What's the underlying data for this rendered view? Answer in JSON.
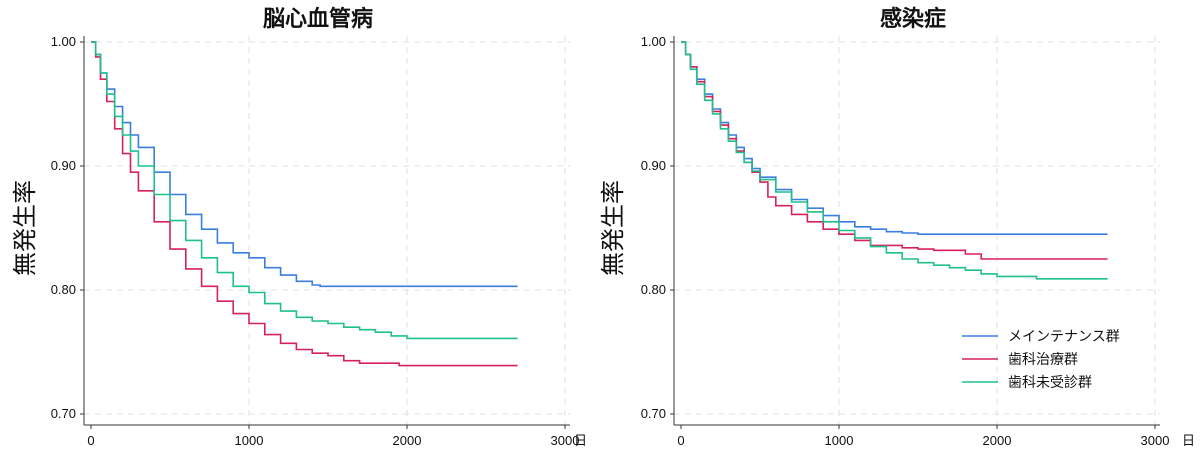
{
  "chart_data": [
    {
      "type": "line",
      "subtype": "kaplan-meier step",
      "title": "脳心血管病",
      "xlabel": "",
      "x_unit": "日",
      "ylabel": "無発生率",
      "xlim": [
        0,
        3000
      ],
      "ylim": [
        0.69,
        1.005
      ],
      "x_ticks": [
        0,
        1000,
        2000,
        3000
      ],
      "y_ticks": [
        1.0,
        0.9,
        0.8,
        0.7
      ],
      "y_tick_labels": [
        "1.00",
        "0.90",
        "0.80",
        "0.70"
      ],
      "grid": true,
      "series": [
        {
          "name": "メインテナンス群",
          "color": "#3a7fe0",
          "x": [
            0,
            30,
            60,
            100,
            150,
            200,
            250,
            300,
            400,
            500,
            600,
            700,
            800,
            900,
            1000,
            1100,
            1200,
            1300,
            1400,
            1450,
            2000,
            2700
          ],
          "y": [
            1.0,
            0.99,
            0.975,
            0.962,
            0.948,
            0.935,
            0.925,
            0.915,
            0.895,
            0.877,
            0.861,
            0.849,
            0.838,
            0.83,
            0.826,
            0.818,
            0.812,
            0.807,
            0.804,
            0.803,
            0.803,
            0.803
          ]
        },
        {
          "name": "歯科治療群",
          "color": "#d6225a",
          "x": [
            0,
            30,
            60,
            100,
            150,
            200,
            250,
            300,
            400,
            500,
            600,
            700,
            800,
            900,
            1000,
            1100,
            1200,
            1300,
            1400,
            1500,
            1600,
            1700,
            1800,
            1950,
            2700
          ],
          "y": [
            1.0,
            0.988,
            0.97,
            0.952,
            0.93,
            0.91,
            0.895,
            0.88,
            0.855,
            0.833,
            0.817,
            0.803,
            0.791,
            0.781,
            0.773,
            0.764,
            0.757,
            0.752,
            0.749,
            0.747,
            0.743,
            0.741,
            0.741,
            0.739,
            0.739
          ]
        },
        {
          "name": "歯科未受診群",
          "color": "#1fbf8f",
          "x": [
            0,
            30,
            60,
            100,
            150,
            200,
            250,
            300,
            400,
            500,
            600,
            700,
            800,
            900,
            1000,
            1100,
            1200,
            1300,
            1400,
            1500,
            1600,
            1700,
            1800,
            1900,
            2000,
            2700
          ],
          "y": [
            1.0,
            0.99,
            0.975,
            0.958,
            0.94,
            0.925,
            0.912,
            0.9,
            0.877,
            0.856,
            0.84,
            0.826,
            0.814,
            0.803,
            0.798,
            0.789,
            0.783,
            0.778,
            0.775,
            0.773,
            0.77,
            0.768,
            0.766,
            0.763,
            0.761,
            0.761
          ]
        }
      ]
    },
    {
      "type": "line",
      "subtype": "kaplan-meier step",
      "title": "感染症",
      "xlabel": "",
      "x_unit": "日",
      "ylabel": "無発生率",
      "xlim": [
        0,
        3000
      ],
      "ylim": [
        0.69,
        1.005
      ],
      "x_ticks": [
        0,
        1000,
        2000,
        3000
      ],
      "y_ticks": [
        1.0,
        0.9,
        0.8,
        0.7
      ],
      "y_tick_labels": [
        "1.00",
        "0.90",
        "0.80",
        "0.70"
      ],
      "grid": true,
      "legend_position": "bottom-right",
      "series": [
        {
          "name": "メインテナンス群",
          "color": "#3a7fe0",
          "x": [
            0,
            30,
            60,
            100,
            150,
            200,
            250,
            300,
            350,
            400,
            450,
            500,
            600,
            700,
            800,
            900,
            1000,
            1100,
            1200,
            1300,
            1400,
            1500,
            2000,
            2700
          ],
          "y": [
            1.0,
            0.99,
            0.98,
            0.97,
            0.958,
            0.946,
            0.935,
            0.925,
            0.915,
            0.906,
            0.898,
            0.891,
            0.881,
            0.873,
            0.866,
            0.86,
            0.855,
            0.851,
            0.849,
            0.847,
            0.846,
            0.845,
            0.845,
            0.845
          ]
        },
        {
          "name": "歯科治療群",
          "color": "#d6225a",
          "x": [
            0,
            30,
            60,
            100,
            150,
            200,
            250,
            300,
            350,
            400,
            450,
            500,
            550,
            600,
            700,
            800,
            900,
            1000,
            1100,
            1200,
            1400,
            1500,
            1600,
            1800,
            1900,
            2700
          ],
          "y": [
            1.0,
            0.99,
            0.98,
            0.968,
            0.956,
            0.944,
            0.933,
            0.922,
            0.912,
            0.903,
            0.895,
            0.887,
            0.875,
            0.868,
            0.861,
            0.855,
            0.849,
            0.845,
            0.84,
            0.836,
            0.834,
            0.833,
            0.832,
            0.829,
            0.825,
            0.825
          ]
        },
        {
          "name": "歯科未受診群",
          "color": "#1fbf8f",
          "x": [
            0,
            30,
            60,
            100,
            150,
            200,
            250,
            300,
            350,
            400,
            450,
            500,
            600,
            700,
            800,
            900,
            1000,
            1100,
            1200,
            1300,
            1400,
            1500,
            1600,
            1700,
            1800,
            1900,
            2000,
            2100,
            2250,
            2700
          ],
          "y": [
            1.0,
            0.99,
            0.978,
            0.966,
            0.953,
            0.942,
            0.93,
            0.92,
            0.911,
            0.903,
            0.896,
            0.889,
            0.879,
            0.871,
            0.863,
            0.855,
            0.848,
            0.842,
            0.835,
            0.83,
            0.825,
            0.822,
            0.82,
            0.818,
            0.816,
            0.813,
            0.811,
            0.811,
            0.809,
            0.809
          ]
        }
      ]
    }
  ]
}
